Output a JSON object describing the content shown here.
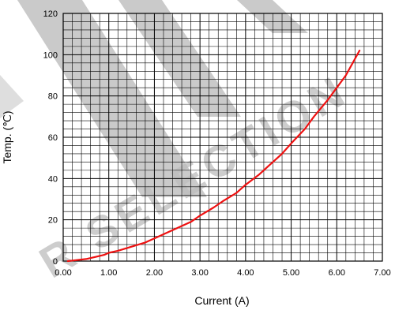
{
  "chart_data": {
    "type": "line",
    "xlabel": "Current (A)",
    "ylabel": "Temp. (℃)",
    "xlim": [
      0,
      7
    ],
    "ylim": [
      0,
      120
    ],
    "grid": true,
    "x_tick_step": 1,
    "y_tick_step": 20,
    "x_minor_per_major": 5,
    "y_minor_per_major": 5,
    "x_tick_labels": [
      "0.00",
      "1.00",
      "2.00",
      "3.00",
      "4.00",
      "5.00",
      "6.00",
      "7.00"
    ],
    "y_tick_labels": [
      "0",
      "20",
      "40",
      "60",
      "80",
      "100",
      "120"
    ],
    "series": [
      {
        "color": "#ee1111",
        "x": [
          0.1,
          0.3,
          0.5,
          0.7,
          0.9,
          1.0,
          1.2,
          1.5,
          1.8,
          2.0,
          2.3,
          2.5,
          2.8,
          3.0,
          3.3,
          3.5,
          3.8,
          4.0,
          4.3,
          4.5,
          4.8,
          5.0,
          5.3,
          5.5,
          5.8,
          6.0,
          6.2,
          6.5
        ],
        "y": [
          0,
          0.5,
          1,
          2,
          3,
          4,
          5,
          7,
          9,
          11,
          14,
          16,
          19,
          22,
          26,
          29,
          33,
          37,
          42,
          46,
          52,
          57,
          64,
          70,
          78,
          84,
          90,
          102
        ]
      }
    ]
  },
  "watermark": {
    "text": "R SELECTION",
    "color": "#bdbdbd"
  }
}
